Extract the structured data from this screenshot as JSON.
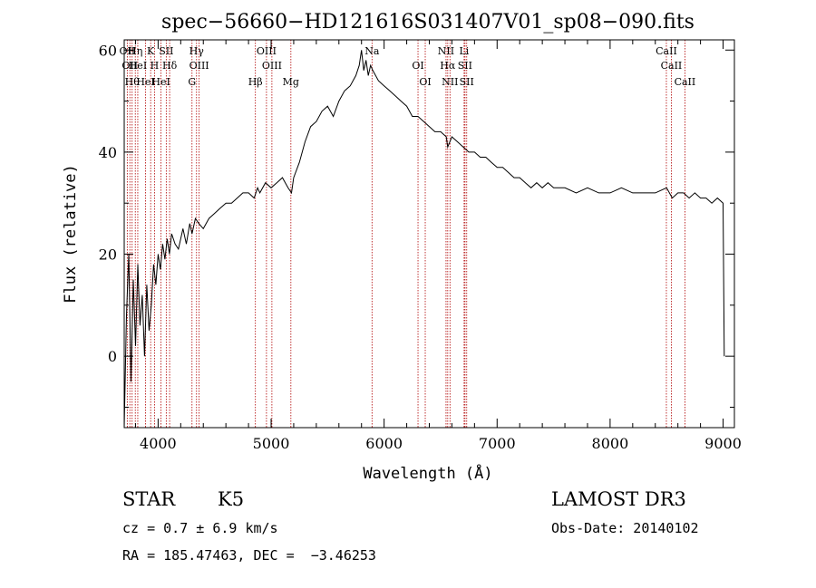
{
  "chart_data": {
    "type": "line",
    "title": "spec−56660−HD121616S031407V01_sp08−090.fits",
    "xlabel": "Wavelength (Å)",
    "ylabel": "Flux (relative)",
    "xlim": [
      3700,
      9100
    ],
    "ylim": [
      -14,
      62
    ],
    "xticks": [
      4000,
      5000,
      6000,
      7000,
      8000,
      9000
    ],
    "yticks": [
      0,
      20,
      40,
      60
    ],
    "grid": false,
    "series": [
      {
        "color": "#000000",
        "x": [
          3700,
          3720,
          3740,
          3760,
          3780,
          3800,
          3820,
          3840,
          3860,
          3880,
          3900,
          3920,
          3940,
          3960,
          3980,
          4000,
          4020,
          4040,
          4060,
          4080,
          4100,
          4120,
          4150,
          4180,
          4200,
          4220,
          4250,
          4280,
          4300,
          4330,
          4360,
          4400,
          4450,
          4500,
          4550,
          4600,
          4650,
          4700,
          4750,
          4800,
          4850,
          4880,
          4900,
          4950,
          5000,
          5050,
          5100,
          5150,
          5180,
          5200,
          5250,
          5300,
          5350,
          5400,
          5450,
          5500,
          5550,
          5600,
          5650,
          5700,
          5750,
          5780,
          5800,
          5820,
          5840,
          5860,
          5880,
          5900,
          5950,
          6000,
          6050,
          6100,
          6150,
          6200,
          6250,
          6300,
          6350,
          6400,
          6450,
          6500,
          6550,
          6563,
          6600,
          6650,
          6700,
          6750,
          6800,
          6850,
          6900,
          6950,
          7000,
          7050,
          7100,
          7150,
          7200,
          7250,
          7300,
          7350,
          7400,
          7450,
          7500,
          7600,
          7700,
          7800,
          7900,
          8000,
          8100,
          8200,
          8300,
          8400,
          8500,
          8550,
          8600,
          8650,
          8700,
          8750,
          8800,
          8850,
          8900,
          8950,
          9000,
          9010
        ],
        "y": [
          -14,
          8,
          20,
          -5,
          15,
          2,
          18,
          6,
          12,
          0,
          14,
          5,
          10,
          18,
          14,
          20,
          17,
          22,
          19,
          23,
          20,
          24,
          22,
          21,
          23,
          25,
          22,
          26,
          24,
          27,
          26,
          25,
          27,
          28,
          29,
          30,
          30,
          31,
          32,
          32,
          31,
          33,
          32,
          34,
          33,
          34,
          35,
          33,
          32,
          35,
          38,
          42,
          45,
          46,
          48,
          49,
          47,
          50,
          52,
          53,
          55,
          57,
          60,
          56,
          58,
          55,
          57,
          56,
          54,
          53,
          52,
          51,
          50,
          49,
          47,
          47,
          46,
          45,
          44,
          44,
          43,
          41,
          43,
          42,
          41,
          40,
          40,
          39,
          39,
          38,
          37,
          37,
          36,
          35,
          35,
          34,
          33,
          34,
          33,
          34,
          33,
          33,
          32,
          33,
          32,
          32,
          33,
          32,
          32,
          32,
          33,
          31,
          32,
          32,
          31,
          32,
          31,
          31,
          30,
          31,
          30,
          0
        ],
        "values": [
          -14,
          8,
          20,
          -5,
          15,
          2,
          18,
          6,
          12,
          0,
          14,
          5,
          10,
          18,
          14,
          20,
          17,
          22,
          19,
          23,
          20,
          24,
          22,
          21,
          23,
          25,
          22,
          26,
          24,
          27,
          26,
          25,
          27,
          28,
          29,
          30,
          30,
          31,
          32,
          32,
          31,
          33,
          32,
          34,
          33,
          34,
          35,
          33,
          32,
          35,
          38,
          42,
          45,
          46,
          48,
          49,
          47,
          50,
          52,
          53,
          55,
          57,
          60,
          56,
          58,
          55,
          57,
          56,
          54,
          53,
          52,
          51,
          50,
          49,
          47,
          47,
          46,
          45,
          44,
          44,
          43,
          41,
          43,
          42,
          41,
          40,
          40,
          39,
          39,
          38,
          37,
          37,
          36,
          35,
          35,
          34,
          33,
          34,
          33,
          34,
          33,
          33,
          32,
          33,
          32,
          32,
          33,
          32,
          32,
          32,
          33,
          31,
          32,
          32,
          31,
          32,
          31,
          31,
          30,
          31,
          30,
          0
        ]
      }
    ],
    "spectral_lines": [
      {
        "wl": 3727,
        "label": "OII"
      },
      {
        "wl": 3750,
        "label": "OII"
      },
      {
        "wl": 3770,
        "label": "Hθ"
      },
      {
        "wl": 3798,
        "label": "Hη"
      },
      {
        "wl": 3820,
        "label": "HeI"
      },
      {
        "wl": 3889,
        "label": "HeI"
      },
      {
        "wl": 3934,
        "label": "K"
      },
      {
        "wl": 3968,
        "label": "H"
      },
      {
        "wl": 4026,
        "label": "HeI"
      },
      {
        "wl": 4072,
        "label": "SII"
      },
      {
        "wl": 4102,
        "label": "Hδ"
      },
      {
        "wl": 4300,
        "label": "G"
      },
      {
        "wl": 4340,
        "label": "Hγ"
      },
      {
        "wl": 4363,
        "label": "OIII"
      },
      {
        "wl": 4861,
        "label": "Hβ"
      },
      {
        "wl": 4959,
        "label": "OIII"
      },
      {
        "wl": 5007,
        "label": "OIII"
      },
      {
        "wl": 5175,
        "label": "Mg"
      },
      {
        "wl": 5893,
        "label": "Na"
      },
      {
        "wl": 6300,
        "label": "OI"
      },
      {
        "wl": 6364,
        "label": "OI"
      },
      {
        "wl": 6548,
        "label": "NII"
      },
      {
        "wl": 6563,
        "label": "Hα"
      },
      {
        "wl": 6583,
        "label": "NII"
      },
      {
        "wl": 6708,
        "label": "Li"
      },
      {
        "wl": 6716,
        "label": "SII"
      },
      {
        "wl": 6731,
        "label": "SII"
      },
      {
        "wl": 8498,
        "label": "CaII"
      },
      {
        "wl": 8542,
        "label": "CaII"
      },
      {
        "wl": 8662,
        "label": "CaII"
      }
    ]
  },
  "info": {
    "class_label": "STAR",
    "subclass": "K5",
    "survey": "LAMOST DR3",
    "cz": "cz = 0.7 ± 6.9 km/s",
    "obs_date": "Obs-Date: 20140102",
    "radec": "RA = 185.47463, DEC =  −3.46253"
  },
  "colors": {
    "spectrum": "#000000",
    "line_markers": "#b00000"
  }
}
